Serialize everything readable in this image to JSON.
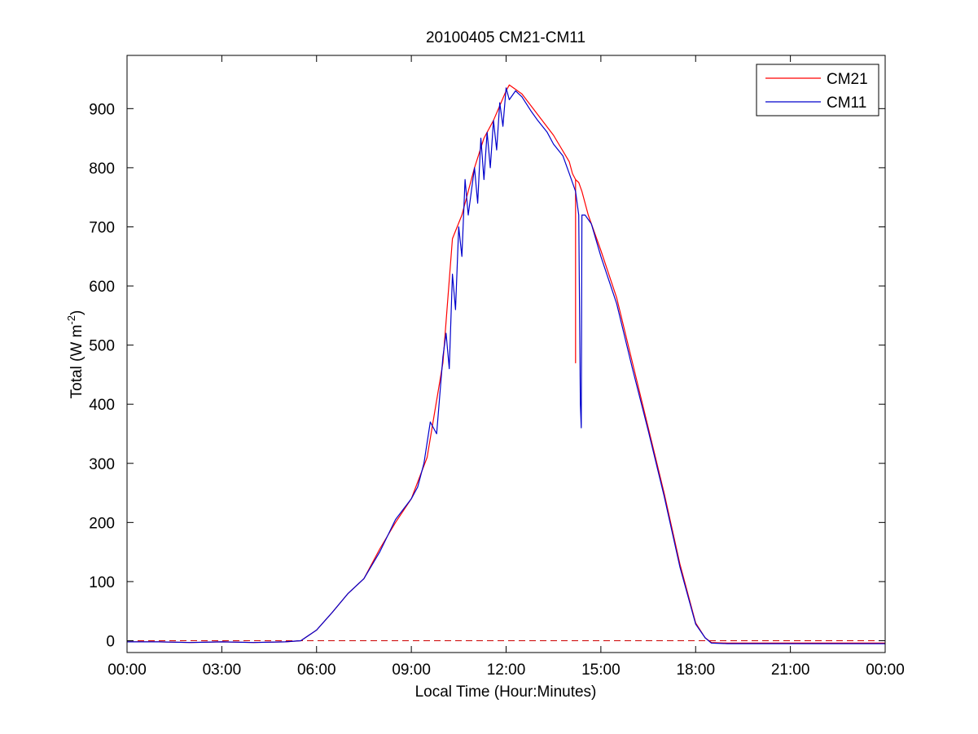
{
  "chart_data": {
    "type": "line",
    "title": "20100405 CM21-CM11",
    "xlabel": "Local Time (Hour:Minutes)",
    "ylabel": {
      "prefix": "Total (W m",
      "superscript": "-2",
      "suffix": ")"
    },
    "xlim": [
      0,
      24
    ],
    "ylim": [
      -20,
      990
    ],
    "x_ticks": [
      0,
      3,
      6,
      9,
      12,
      15,
      18,
      21,
      24
    ],
    "x_tick_labels": [
      "00:00",
      "03:00",
      "06:00",
      "09:00",
      "12:00",
      "15:00",
      "18:00",
      "21:00",
      "00:00"
    ],
    "y_ticks": [
      0,
      100,
      200,
      300,
      400,
      500,
      600,
      700,
      800,
      900
    ],
    "y_tick_labels": [
      "0",
      "100",
      "200",
      "300",
      "400",
      "500",
      "600",
      "700",
      "800",
      "900"
    ],
    "grid": false,
    "legend_position": "top-right",
    "reference_line": {
      "y": 0,
      "style": "dashed",
      "color": "#cc0000"
    },
    "series": [
      {
        "name": "CM21",
        "color": "#ff0000",
        "x": [
          0,
          1,
          2,
          3,
          4,
          5,
          5.5,
          6,
          6.5,
          7,
          7.5,
          8,
          8.5,
          9,
          9.5,
          10,
          10.3,
          10.6,
          11,
          11.3,
          11.6,
          12,
          12.1,
          12.5,
          13,
          13.5,
          14,
          14.1,
          14.2,
          14.2,
          14.2,
          14.3,
          14.4,
          14.6,
          15,
          15.5,
          16,
          16.5,
          17,
          17.5,
          18,
          18.3,
          18.5,
          19,
          21,
          24
        ],
        "y": [
          -2,
          -2,
          -3,
          -2,
          -3,
          -2,
          0,
          18,
          48,
          80,
          105,
          155,
          200,
          240,
          310,
          470,
          680,
          720,
          800,
          850,
          880,
          930,
          940,
          925,
          890,
          855,
          810,
          790,
          780,
          470,
          780,
          775,
          760,
          720,
          660,
          580,
          470,
          360,
          250,
          130,
          30,
          5,
          -3,
          -4,
          -4,
          -4
        ]
      },
      {
        "name": "CM11",
        "color": "#0000cc",
        "x": [
          0,
          1,
          2,
          3,
          4,
          5,
          5.5,
          6,
          6.5,
          7,
          7.5,
          8,
          8.5,
          9,
          9.2,
          9.4,
          9.6,
          9.8,
          10,
          10.1,
          10.2,
          10.3,
          10.4,
          10.5,
          10.6,
          10.7,
          10.8,
          10.9,
          11,
          11.1,
          11.2,
          11.3,
          11.4,
          11.5,
          11.6,
          11.7,
          11.8,
          11.9,
          12,
          12.1,
          12.3,
          12.5,
          12.8,
          13,
          13.3,
          13.5,
          13.8,
          14,
          14.2,
          14.3,
          14.35,
          14.38,
          14.4,
          14.5,
          14.7,
          15,
          15.5,
          16,
          16.5,
          17,
          17.5,
          18,
          18.3,
          18.5,
          19,
          21,
          24
        ],
        "y": [
          -2,
          -2,
          -3,
          -2,
          -3,
          -2,
          0,
          18,
          48,
          80,
          105,
          150,
          205,
          240,
          260,
          300,
          370,
          350,
          480,
          520,
          460,
          620,
          560,
          700,
          650,
          780,
          720,
          760,
          800,
          740,
          850,
          780,
          860,
          800,
          880,
          830,
          910,
          870,
          935,
          915,
          930,
          920,
          895,
          880,
          860,
          840,
          820,
          790,
          760,
          720,
          400,
          360,
          720,
          720,
          705,
          650,
          570,
          460,
          355,
          245,
          125,
          28,
          5,
          -4,
          -5,
          -5,
          -5
        ]
      }
    ]
  }
}
